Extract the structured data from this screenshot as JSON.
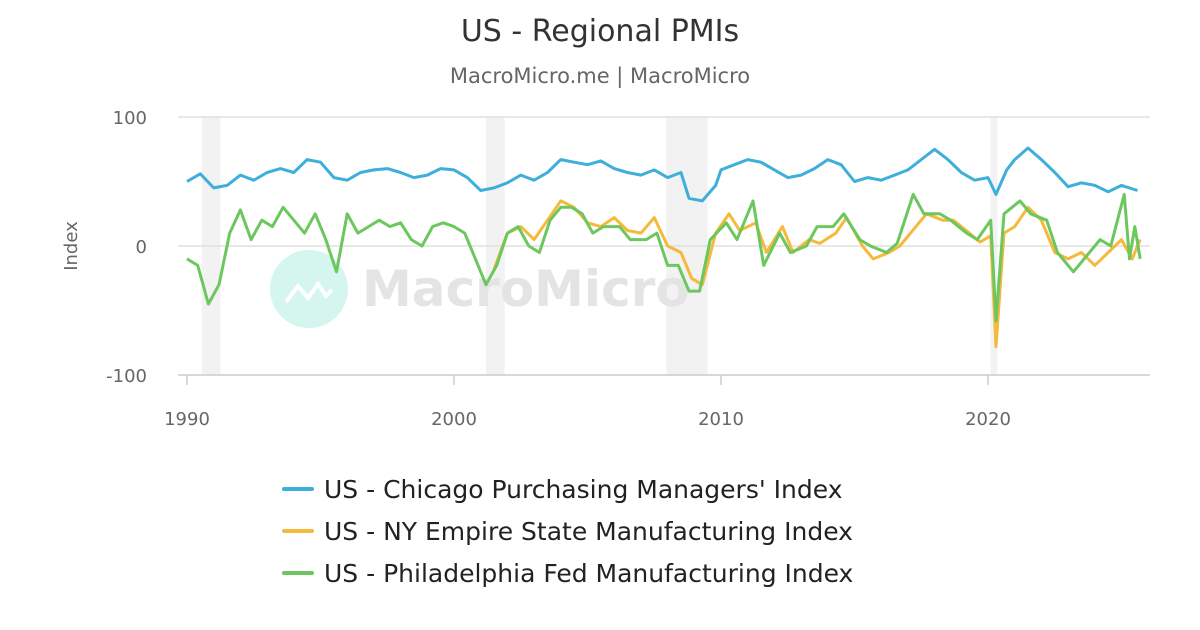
{
  "chart_data": {
    "type": "line",
    "title": "US - Regional PMIs",
    "subtitle": "MacroMicro.me | MacroMicro",
    "watermark": "MacroMicro",
    "ylabel": "Index",
    "xlabel": "",
    "ylim": [
      -100,
      100
    ],
    "xlim": [
      1989.7,
      2025.9
    ],
    "yticks": [
      {
        "value": 100,
        "label": "100"
      },
      {
        "value": 0,
        "label": "0"
      },
      {
        "value": -100,
        "label": "-100"
      }
    ],
    "xticks": [
      {
        "value": 1990,
        "label": "1990"
      },
      {
        "value": 2000,
        "label": "2000"
      },
      {
        "value": 2010,
        "label": "2010"
      },
      {
        "value": 2020,
        "label": "2020"
      }
    ],
    "recessions": [
      [
        1990.55,
        1991.25
      ],
      [
        2001.2,
        2001.9
      ],
      [
        2007.95,
        2009.5
      ],
      [
        2020.1,
        2020.35
      ]
    ],
    "legend_position": "bottom",
    "series": [
      {
        "name": "US - Chicago Purchasing Managers' Index",
        "color": "#3eaedb",
        "points": [
          [
            1990,
            50
          ],
          [
            1990.5,
            56
          ],
          [
            1991,
            45
          ],
          [
            1991.5,
            47
          ],
          [
            1992,
            55
          ],
          [
            1992.5,
            51
          ],
          [
            1993,
            57
          ],
          [
            1993.5,
            60
          ],
          [
            1994,
            57
          ],
          [
            1994.5,
            67
          ],
          [
            1995,
            65
          ],
          [
            1995.5,
            53
          ],
          [
            1996,
            51
          ],
          [
            1996.5,
            57
          ],
          [
            1997,
            59
          ],
          [
            1997.5,
            60
          ],
          [
            1998,
            57
          ],
          [
            1998.5,
            53
          ],
          [
            1999,
            55
          ],
          [
            1999.5,
            60
          ],
          [
            2000,
            59
          ],
          [
            2000.5,
            53
          ],
          [
            2001,
            43
          ],
          [
            2001.5,
            45
          ],
          [
            2002,
            49
          ],
          [
            2002.5,
            55
          ],
          [
            2003,
            51
          ],
          [
            2003.5,
            57
          ],
          [
            2004,
            67
          ],
          [
            2004.5,
            65
          ],
          [
            2005,
            63
          ],
          [
            2005.5,
            66
          ],
          [
            2006,
            60
          ],
          [
            2006.5,
            57
          ],
          [
            2007,
            55
          ],
          [
            2007.5,
            59
          ],
          [
            2008,
            53
          ],
          [
            2008.5,
            57
          ],
          [
            2008.8,
            37
          ],
          [
            2009.3,
            35
          ],
          [
            2009.8,
            47
          ],
          [
            2010,
            59
          ],
          [
            2010.5,
            63
          ],
          [
            2011,
            67
          ],
          [
            2011.5,
            65
          ],
          [
            2012,
            59
          ],
          [
            2012.5,
            53
          ],
          [
            2013,
            55
          ],
          [
            2013.5,
            60
          ],
          [
            2014,
            67
          ],
          [
            2014.5,
            63
          ],
          [
            2015,
            50
          ],
          [
            2015.5,
            53
          ],
          [
            2016,
            51
          ],
          [
            2016.5,
            55
          ],
          [
            2017,
            59
          ],
          [
            2017.5,
            67
          ],
          [
            2018,
            75
          ],
          [
            2018.5,
            67
          ],
          [
            2019,
            57
          ],
          [
            2019.5,
            51
          ],
          [
            2020,
            53
          ],
          [
            2020.3,
            40
          ],
          [
            2020.7,
            59
          ],
          [
            2021,
            67
          ],
          [
            2021.5,
            76
          ],
          [
            2022,
            67
          ],
          [
            2022.5,
            57
          ],
          [
            2023,
            46
          ],
          [
            2023.5,
            49
          ],
          [
            2024,
            47
          ],
          [
            2024.5,
            42
          ],
          [
            2025,
            47
          ],
          [
            2025.6,
            43
          ]
        ]
      },
      {
        "name": "US - NY Empire State Manufacturing Index",
        "color": "#f5b93c",
        "points": [
          [
            2001.5,
            -18
          ],
          [
            2002,
            10
          ],
          [
            2002.5,
            15
          ],
          [
            2003,
            5
          ],
          [
            2003.5,
            20
          ],
          [
            2004,
            35
          ],
          [
            2004.5,
            30
          ],
          [
            2005,
            18
          ],
          [
            2005.5,
            15
          ],
          [
            2006,
            22
          ],
          [
            2006.5,
            12
          ],
          [
            2007,
            10
          ],
          [
            2007.5,
            22
          ],
          [
            2008,
            0
          ],
          [
            2008.5,
            -5
          ],
          [
            2008.9,
            -25
          ],
          [
            2009.3,
            -30
          ],
          [
            2009.8,
            10
          ],
          [
            2010.3,
            25
          ],
          [
            2010.7,
            12
          ],
          [
            2011.3,
            18
          ],
          [
            2011.7,
            -5
          ],
          [
            2012.3,
            15
          ],
          [
            2012.7,
            -5
          ],
          [
            2013.3,
            5
          ],
          [
            2013.7,
            2
          ],
          [
            2014.3,
            10
          ],
          [
            2014.7,
            22
          ],
          [
            2015.3,
            0
          ],
          [
            2015.7,
            -10
          ],
          [
            2016.3,
            -5
          ],
          [
            2016.7,
            0
          ],
          [
            2017.3,
            15
          ],
          [
            2017.7,
            25
          ],
          [
            2018.3,
            20
          ],
          [
            2018.7,
            20
          ],
          [
            2019.3,
            10
          ],
          [
            2019.7,
            3
          ],
          [
            2020.1,
            8
          ],
          [
            2020.3,
            -78
          ],
          [
            2020.6,
            10
          ],
          [
            2021,
            15
          ],
          [
            2021.5,
            30
          ],
          [
            2022,
            20
          ],
          [
            2022.5,
            -5
          ],
          [
            2023,
            -10
          ],
          [
            2023.5,
            -5
          ],
          [
            2024,
            -15
          ],
          [
            2024.5,
            -5
          ],
          [
            2025,
            5
          ],
          [
            2025.4,
            -10
          ],
          [
            2025.7,
            5
          ]
        ]
      },
      {
        "name": "US - Philadelphia Fed Manufacturing Index",
        "color": "#6cc75e",
        "points": [
          [
            1990,
            -10
          ],
          [
            1990.4,
            -15
          ],
          [
            1990.8,
            -45
          ],
          [
            1991.2,
            -30
          ],
          [
            1991.6,
            10
          ],
          [
            1992,
            28
          ],
          [
            1992.4,
            5
          ],
          [
            1992.8,
            20
          ],
          [
            1993.2,
            15
          ],
          [
            1993.6,
            30
          ],
          [
            1994,
            20
          ],
          [
            1994.4,
            10
          ],
          [
            1994.8,
            25
          ],
          [
            1995.2,
            5
          ],
          [
            1995.6,
            -20
          ],
          [
            1996,
            25
          ],
          [
            1996.4,
            10
          ],
          [
            1996.8,
            15
          ],
          [
            1997.2,
            20
          ],
          [
            1997.6,
            15
          ],
          [
            1998,
            18
          ],
          [
            1998.4,
            5
          ],
          [
            1998.8,
            0
          ],
          [
            1999.2,
            15
          ],
          [
            1999.6,
            18
          ],
          [
            2000,
            15
          ],
          [
            2000.4,
            10
          ],
          [
            2000.8,
            -10
          ],
          [
            2001.2,
            -30
          ],
          [
            2001.6,
            -15
          ],
          [
            2002,
            10
          ],
          [
            2002.4,
            15
          ],
          [
            2002.8,
            0
          ],
          [
            2003.2,
            -5
          ],
          [
            2003.6,
            20
          ],
          [
            2004,
            30
          ],
          [
            2004.4,
            30
          ],
          [
            2004.8,
            25
          ],
          [
            2005.2,
            10
          ],
          [
            2005.6,
            15
          ],
          [
            2006.2,
            15
          ],
          [
            2006.6,
            5
          ],
          [
            2007.2,
            5
          ],
          [
            2007.6,
            10
          ],
          [
            2008,
            -15
          ],
          [
            2008.4,
            -15
          ],
          [
            2008.8,
            -35
          ],
          [
            2009.2,
            -35
          ],
          [
            2009.6,
            5
          ],
          [
            2010.2,
            18
          ],
          [
            2010.6,
            5
          ],
          [
            2011.2,
            35
          ],
          [
            2011.6,
            -15
          ],
          [
            2012.2,
            10
          ],
          [
            2012.6,
            -5
          ],
          [
            2013.2,
            0
          ],
          [
            2013.6,
            15
          ],
          [
            2014.2,
            15
          ],
          [
            2014.6,
            25
          ],
          [
            2015.2,
            5
          ],
          [
            2015.6,
            0
          ],
          [
            2016.2,
            -5
          ],
          [
            2016.6,
            2
          ],
          [
            2017.2,
            40
          ],
          [
            2017.6,
            25
          ],
          [
            2018.2,
            25
          ],
          [
            2018.6,
            20
          ],
          [
            2019.2,
            10
          ],
          [
            2019.6,
            5
          ],
          [
            2020.1,
            20
          ],
          [
            2020.3,
            -58
          ],
          [
            2020.6,
            25
          ],
          [
            2021.2,
            35
          ],
          [
            2021.6,
            25
          ],
          [
            2022.2,
            20
          ],
          [
            2022.6,
            -5
          ],
          [
            2023.2,
            -20
          ],
          [
            2023.6,
            -10
          ],
          [
            2024.2,
            5
          ],
          [
            2024.6,
            0
          ],
          [
            2025.1,
            40
          ],
          [
            2025.3,
            -10
          ],
          [
            2025.5,
            15
          ],
          [
            2025.7,
            -10
          ]
        ]
      }
    ]
  }
}
